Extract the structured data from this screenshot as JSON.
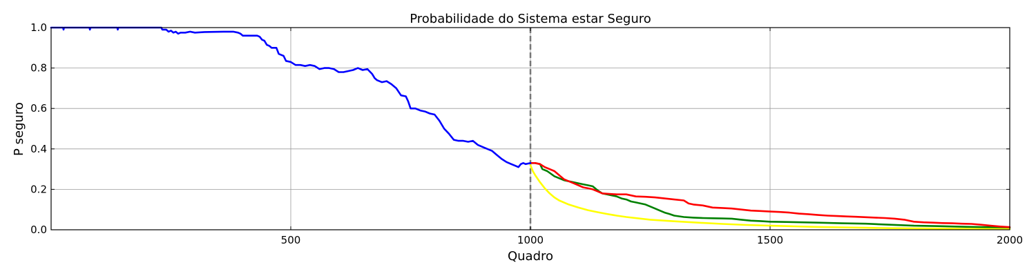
{
  "chart_data": {
    "type": "line",
    "title": "Probabilidade do Sistema estar Seguro",
    "xlabel": "Quadro",
    "ylabel": "P seguro",
    "xlim": [
      0,
      2000
    ],
    "ylim": [
      0.0,
      1.0
    ],
    "x_ticks": [
      500,
      1000,
      1500,
      2000
    ],
    "x_tick_labels": [
      "500",
      "1000",
      "1500",
      "2000"
    ],
    "y_ticks": [
      0.0,
      0.2,
      0.4,
      0.6,
      0.8,
      1.0
    ],
    "y_tick_labels": [
      "0.0",
      "0.2",
      "0.4",
      "0.6",
      "0.8",
      "1.0"
    ],
    "grid": true,
    "vline": {
      "x": 1000,
      "color": "#777777",
      "style": "dashed"
    },
    "series": [
      {
        "color": "#0000ff",
        "x": [
          0,
          25,
          26,
          27,
          40,
          80,
          81,
          82,
          130,
          138,
          139,
          140,
          200,
          230,
          232,
          240,
          245,
          250,
          255,
          260,
          265,
          270,
          280,
          290,
          300,
          320,
          340,
          360,
          380,
          390,
          395,
          400,
          410,
          420,
          430,
          435,
          440,
          445,
          450,
          455,
          460,
          465,
          470,
          475,
          480,
          485,
          490,
          500,
          510,
          520,
          530,
          540,
          550,
          560,
          570,
          580,
          590,
          600,
          610,
          620,
          630,
          640,
          650,
          660,
          670,
          675,
          680,
          690,
          700,
          710,
          720,
          730,
          740,
          745,
          750,
          760,
          770,
          780,
          790,
          800,
          810,
          820,
          830,
          840,
          850,
          860,
          870,
          880,
          890,
          900,
          910,
          920,
          930,
          940,
          950,
          960,
          970,
          975,
          980,
          985,
          990,
          1000
        ],
        "values": [
          1.0,
          1.0,
          0.99,
          1.0,
          1.0,
          1.0,
          0.99,
          1.0,
          1.0,
          1.0,
          0.99,
          1.0,
          1.0,
          1.0,
          0.99,
          0.99,
          0.98,
          0.985,
          0.975,
          0.98,
          0.97,
          0.975,
          0.975,
          0.98,
          0.975,
          0.978,
          0.979,
          0.98,
          0.98,
          0.975,
          0.97,
          0.96,
          0.96,
          0.96,
          0.96,
          0.955,
          0.94,
          0.935,
          0.915,
          0.91,
          0.9,
          0.9,
          0.9,
          0.87,
          0.865,
          0.86,
          0.835,
          0.83,
          0.815,
          0.815,
          0.81,
          0.815,
          0.81,
          0.795,
          0.8,
          0.8,
          0.795,
          0.78,
          0.78,
          0.785,
          0.79,
          0.8,
          0.79,
          0.795,
          0.77,
          0.75,
          0.74,
          0.73,
          0.735,
          0.72,
          0.7,
          0.665,
          0.66,
          0.635,
          0.6,
          0.6,
          0.59,
          0.585,
          0.575,
          0.57,
          0.54,
          0.5,
          0.475,
          0.445,
          0.44,
          0.44,
          0.435,
          0.44,
          0.42,
          0.41,
          0.4,
          0.39,
          0.37,
          0.35,
          0.335,
          0.325,
          0.315,
          0.31,
          0.325,
          0.33,
          0.325,
          0.33
        ]
      },
      {
        "color": "#ff0000",
        "x": [
          1000,
          1010,
          1020,
          1030,
          1040,
          1050,
          1060,
          1070,
          1080,
          1090,
          1100,
          1110,
          1120,
          1130,
          1140,
          1150,
          1160,
          1180,
          1200,
          1220,
          1240,
          1260,
          1280,
          1300,
          1320,
          1330,
          1340,
          1360,
          1380,
          1400,
          1420,
          1440,
          1460,
          1480,
          1500,
          1520,
          1540,
          1560,
          1580,
          1600,
          1620,
          1640,
          1660,
          1680,
          1700,
          1720,
          1740,
          1760,
          1780,
          1800,
          1820,
          1840,
          1860,
          1880,
          1900,
          1920,
          1940,
          1960,
          1980,
          2000
        ],
        "values": [
          0.33,
          0.33,
          0.325,
          0.31,
          0.3,
          0.29,
          0.27,
          0.25,
          0.24,
          0.23,
          0.22,
          0.21,
          0.205,
          0.2,
          0.19,
          0.18,
          0.178,
          0.175,
          0.175,
          0.165,
          0.163,
          0.16,
          0.155,
          0.15,
          0.145,
          0.13,
          0.125,
          0.12,
          0.11,
          0.108,
          0.105,
          0.1,
          0.095,
          0.093,
          0.09,
          0.088,
          0.085,
          0.08,
          0.077,
          0.073,
          0.07,
          0.068,
          0.066,
          0.064,
          0.062,
          0.06,
          0.058,
          0.055,
          0.05,
          0.04,
          0.037,
          0.035,
          0.033,
          0.032,
          0.03,
          0.029,
          0.025,
          0.02,
          0.016,
          0.013
        ]
      },
      {
        "color": "#008000",
        "x": [
          1000,
          1010,
          1020,
          1025,
          1035,
          1050,
          1060,
          1070,
          1080,
          1090,
          1100,
          1110,
          1120,
          1130,
          1140,
          1150,
          1160,
          1170,
          1180,
          1190,
          1200,
          1210,
          1220,
          1230,
          1240,
          1250,
          1260,
          1270,
          1280,
          1290,
          1300,
          1320,
          1340,
          1360,
          1380,
          1400,
          1420,
          1440,
          1460,
          1480,
          1500,
          1550,
          1600,
          1650,
          1700,
          1750,
          1800,
          1850,
          1900,
          1950,
          2000
        ],
        "values": [
          0.33,
          0.33,
          0.325,
          0.3,
          0.29,
          0.265,
          0.255,
          0.245,
          0.24,
          0.235,
          0.23,
          0.225,
          0.22,
          0.215,
          0.195,
          0.18,
          0.175,
          0.17,
          0.165,
          0.155,
          0.15,
          0.14,
          0.135,
          0.13,
          0.125,
          0.115,
          0.105,
          0.095,
          0.085,
          0.078,
          0.07,
          0.063,
          0.06,
          0.058,
          0.057,
          0.056,
          0.055,
          0.05,
          0.045,
          0.043,
          0.04,
          0.038,
          0.035,
          0.032,
          0.03,
          0.025,
          0.02,
          0.018,
          0.015,
          0.013,
          0.012
        ]
      },
      {
        "color": "#ffff00",
        "x": [
          1000,
          1005,
          1010,
          1020,
          1030,
          1040,
          1050,
          1060,
          1080,
          1100,
          1120,
          1140,
          1160,
          1180,
          1200,
          1250,
          1300,
          1350,
          1400,
          1450,
          1500,
          1550,
          1600,
          1650,
          1700,
          1750,
          1800,
          1850,
          1900,
          1950,
          2000
        ],
        "values": [
          0.32,
          0.29,
          0.27,
          0.235,
          0.205,
          0.18,
          0.16,
          0.145,
          0.125,
          0.11,
          0.097,
          0.087,
          0.078,
          0.07,
          0.063,
          0.05,
          0.042,
          0.035,
          0.029,
          0.024,
          0.02,
          0.017,
          0.014,
          0.012,
          0.01,
          0.008,
          0.007,
          0.006,
          0.005,
          0.004,
          0.004
        ]
      }
    ]
  }
}
